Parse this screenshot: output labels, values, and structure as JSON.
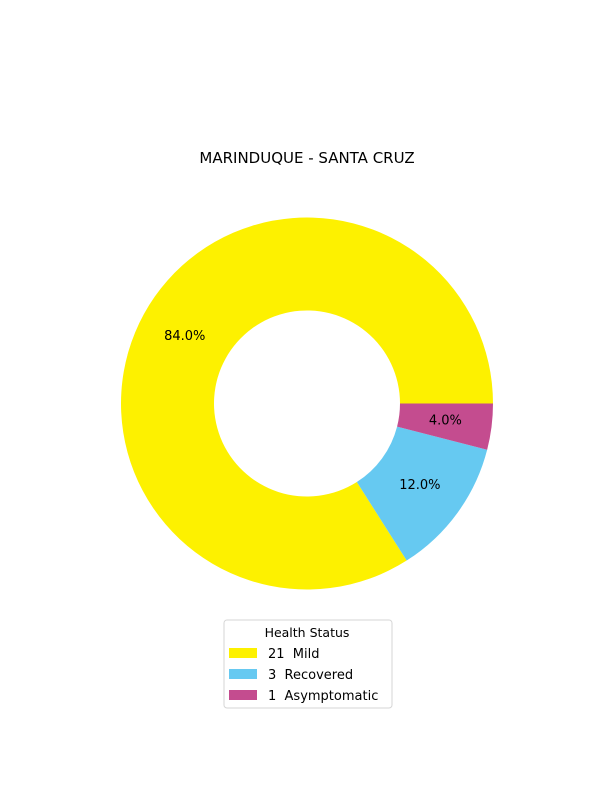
{
  "chart_data": {
    "type": "pie",
    "title": "MARINDUQUE - SANTA CRUZ",
    "donut": true,
    "legend": {
      "title": "Health Status",
      "placement": "bottom-center"
    },
    "slices": [
      {
        "category": "Mild",
        "count": 21,
        "count_text": "21",
        "percent": 84.0,
        "percent_label": "84.0%",
        "color": "#FDF100",
        "legend_label": "21  Mild"
      },
      {
        "category": "Recovered",
        "count": 3,
        "count_text": "3",
        "percent": 12.0,
        "percent_label": "12.0%",
        "color": "#66C9F1",
        "legend_label": "3  Recovered"
      },
      {
        "category": "Asymptomatic",
        "count": 1,
        "count_text": "1",
        "percent": 4.0,
        "percent_label": "4.0%",
        "color": "#C44C8F",
        "legend_label": "1  Asymptomatic"
      }
    ]
  }
}
